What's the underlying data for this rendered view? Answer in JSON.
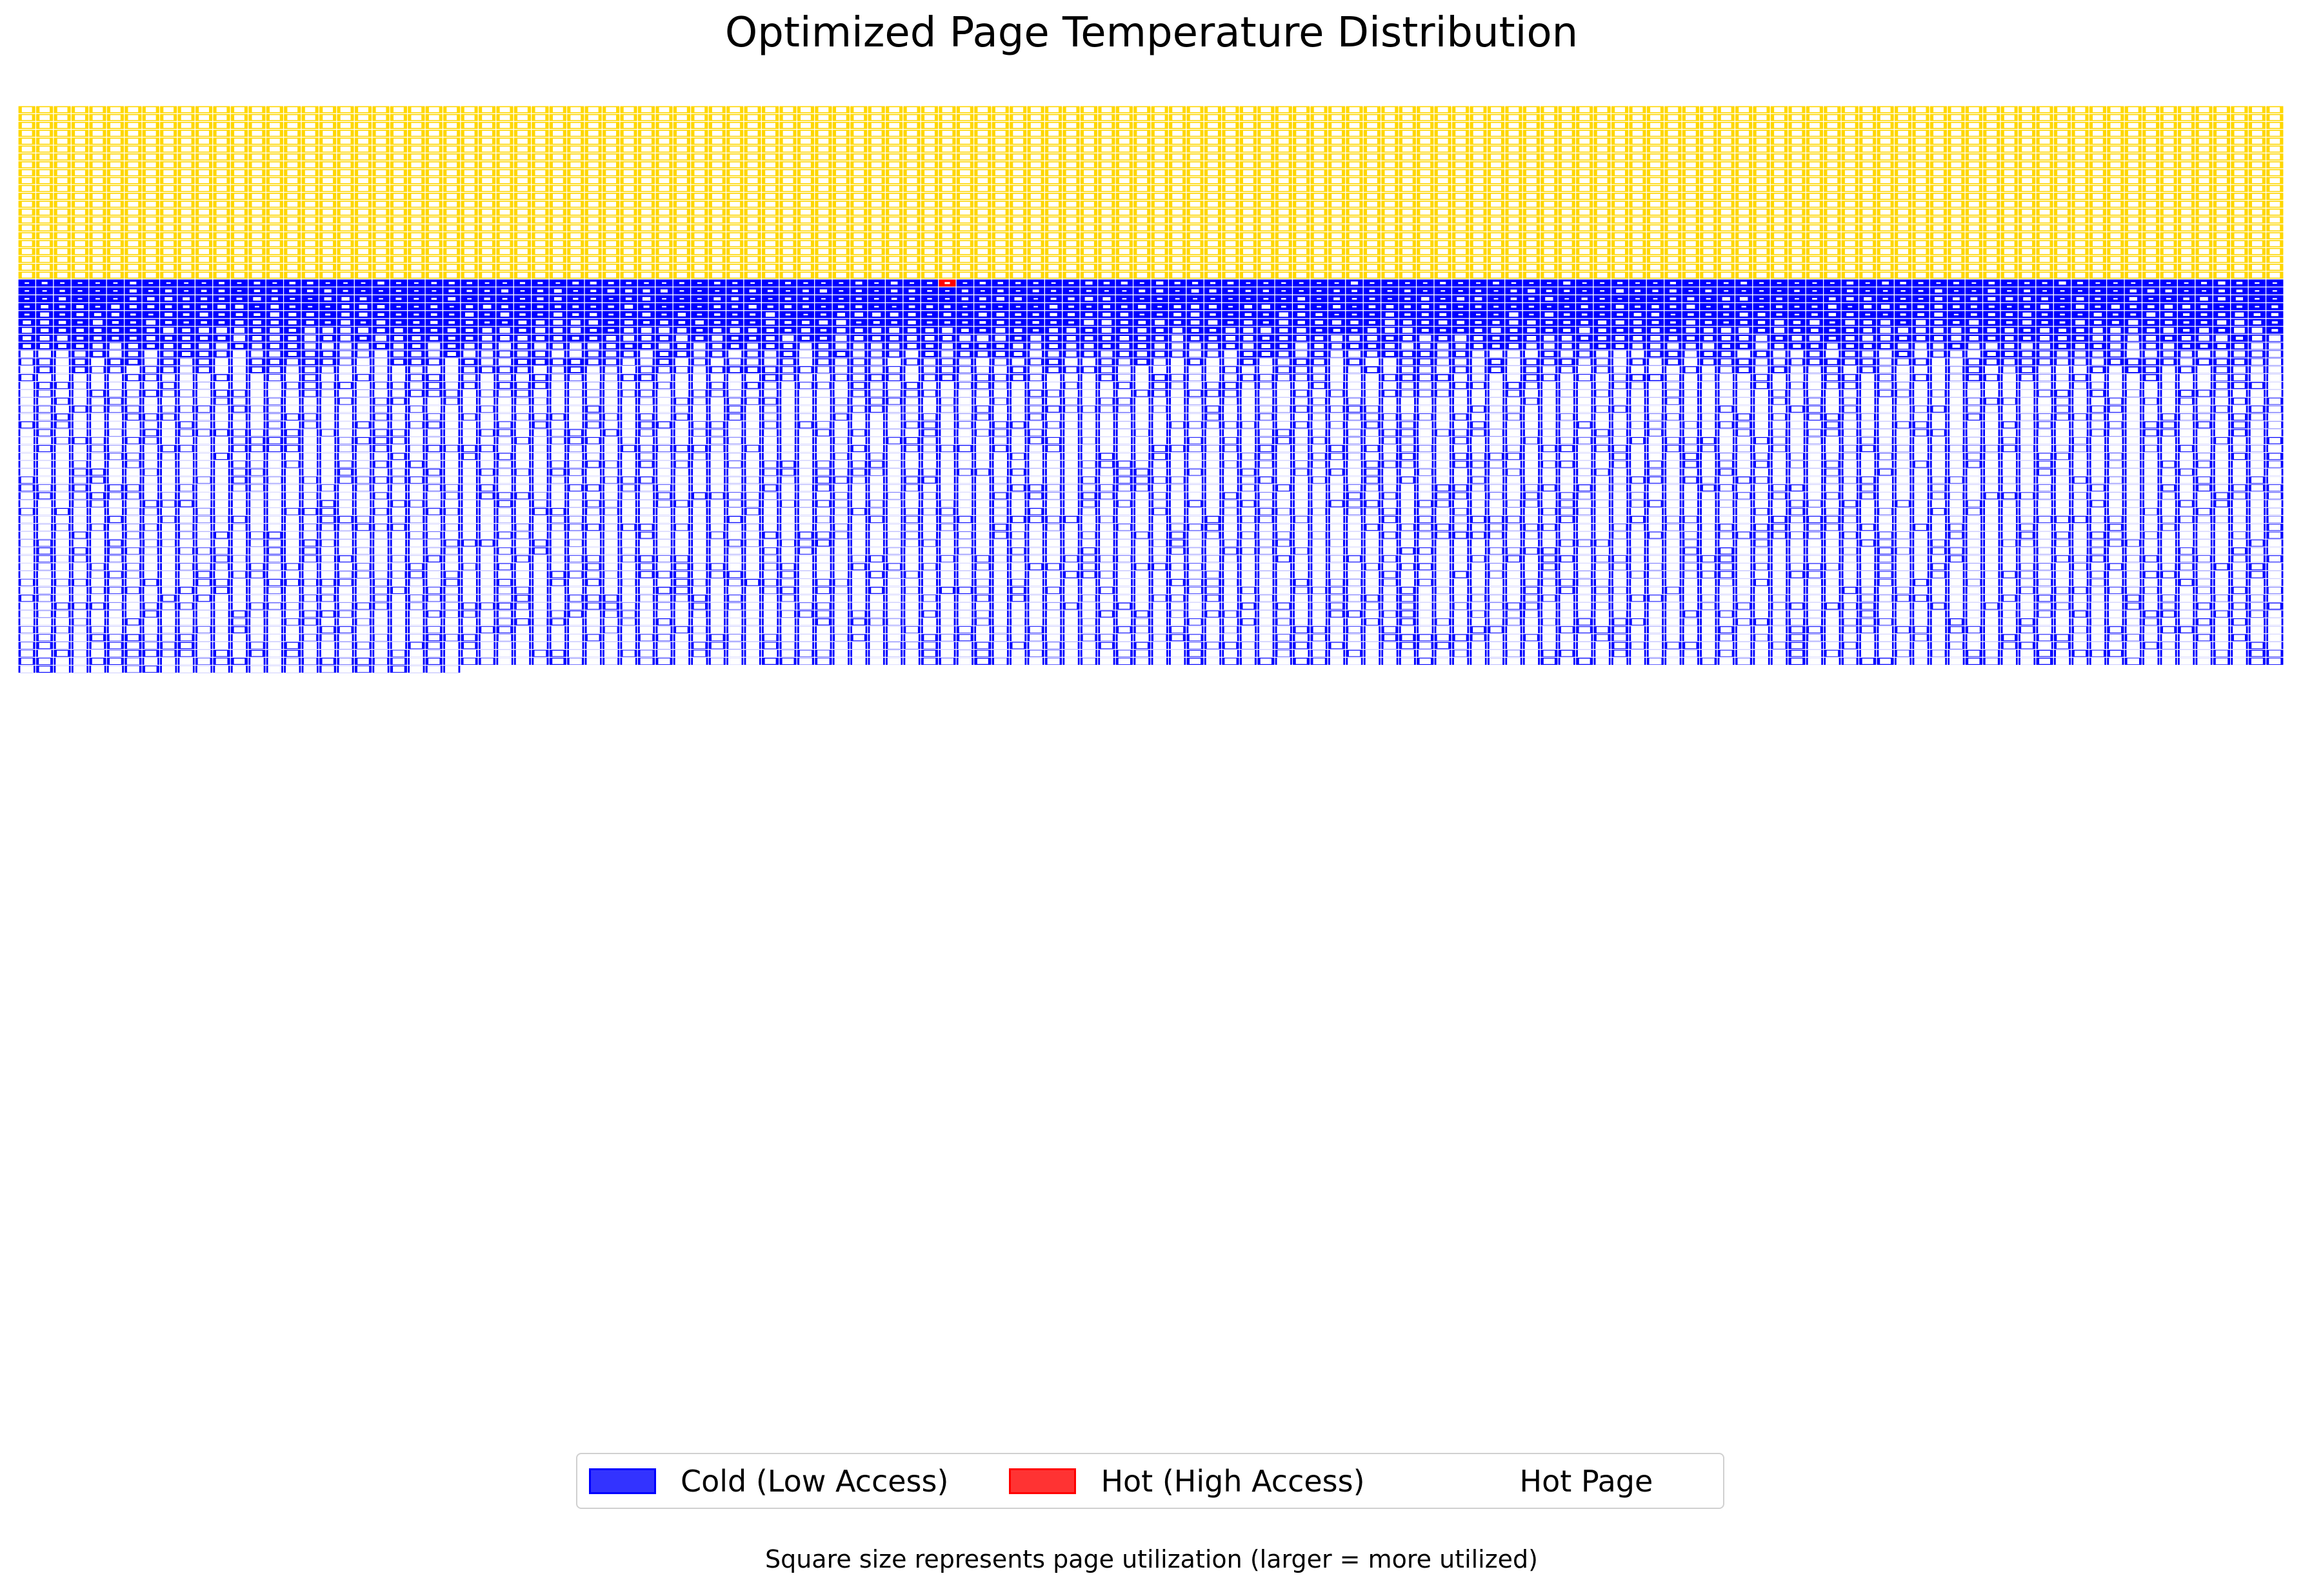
{
  "chart_data": {
    "type": "heatmap",
    "title": "Optimized Page Temperature Distribution",
    "grid": {
      "columns": 128,
      "rows": 72
    },
    "colors": {
      "cold": "#0000ff",
      "hot": "#ff0000",
      "hot_page": "#ffd700",
      "cell_edge": "#ffffff"
    },
    "legend": {
      "placement": "lower-center",
      "entries": [
        {
          "label": "Cold (Low Access)",
          "color": "#3333ff",
          "edge": "#0000ff"
        },
        {
          "label": "Hot (High Access)",
          "color": "#ff3333",
          "edge": "#ff0000"
        },
        {
          "label": "Hot Page",
          "color": "none"
        }
      ]
    },
    "regions": [
      {
        "name": "Hot Page",
        "rows": [
          0,
          22
        ],
        "columns": [
          0,
          127
        ],
        "color": "#ffd700",
        "utilization": 0.35
      },
      {
        "name": "Hot (High Access)",
        "rows": [
          22,
          22
        ],
        "columns": [
          52,
          52
        ],
        "color": "#ff0000",
        "utilization": 0.9
      },
      {
        "name": "Cold (Low Access)",
        "rows": [
          22,
          71
        ],
        "columns": [
          0,
          127
        ],
        "color": "#0000ff",
        "utilization_by_row": [
          0.95,
          0.9,
          0.85,
          0.8,
          0.72,
          0.65,
          0.55,
          0.45,
          0.38,
          0.3,
          0.22,
          0.15,
          0.1,
          0.06,
          0.03,
          0.0
        ]
      }
    ],
    "footnote": "Square size represents page utilization (larger = more utilized)",
    "axes_visible": false
  }
}
